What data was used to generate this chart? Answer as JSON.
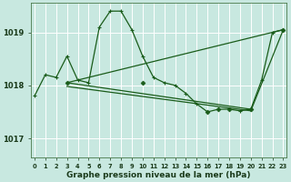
{
  "background_color": "#c8e8e0",
  "grid_color": "#ffffff",
  "line_color": "#1a5c1a",
  "title": "Graphe pression niveau de la mer (hPa)",
  "ylabel_ticks": [
    1017,
    1018,
    1019
  ],
  "xlim": [
    -0.3,
    23.3
  ],
  "ylim": [
    1016.65,
    1019.55
  ],
  "series1_x": [
    0,
    1,
    2,
    3,
    4,
    5,
    6,
    7,
    8,
    9,
    10,
    11,
    12,
    13,
    14,
    15,
    16,
    17,
    18,
    19,
    20,
    21,
    22,
    23
  ],
  "series1_y": [
    1017.8,
    1018.2,
    1018.15,
    1018.55,
    1018.1,
    1018.05,
    1019.1,
    1019.4,
    1019.4,
    1019.05,
    1018.55,
    1018.15,
    1018.05,
    1018.0,
    1017.85,
    1017.65,
    1017.5,
    1017.55,
    1017.55,
    1017.52,
    1017.55,
    1018.1,
    1019.0,
    1019.05
  ],
  "series2_x": [
    3,
    23
  ],
  "series2_y": [
    1018.05,
    1019.05
  ],
  "series3_x": [
    3,
    20
  ],
  "series3_y": [
    1018.05,
    1017.55
  ],
  "series4_x": [
    3,
    20
  ],
  "series4_y": [
    1017.98,
    1017.52
  ],
  "series5_x": [
    3,
    20,
    23
  ],
  "series5_y": [
    1017.98,
    1017.52,
    1019.05
  ],
  "markers_x": [
    3,
    10,
    16,
    17,
    18,
    19,
    20,
    23
  ],
  "markers_y": [
    1018.05,
    1018.1,
    1017.5,
    1017.55,
    1017.55,
    1017.52,
    1017.55,
    1019.05
  ],
  "xtick_labels": [
    "0",
    "1",
    "2",
    "3",
    "4",
    "5",
    "6",
    "7",
    "8",
    "9",
    "10",
    "11",
    "12",
    "13",
    "14",
    "15",
    "16",
    "17",
    "18",
    "19",
    "20",
    "21",
    "22",
    "23"
  ]
}
